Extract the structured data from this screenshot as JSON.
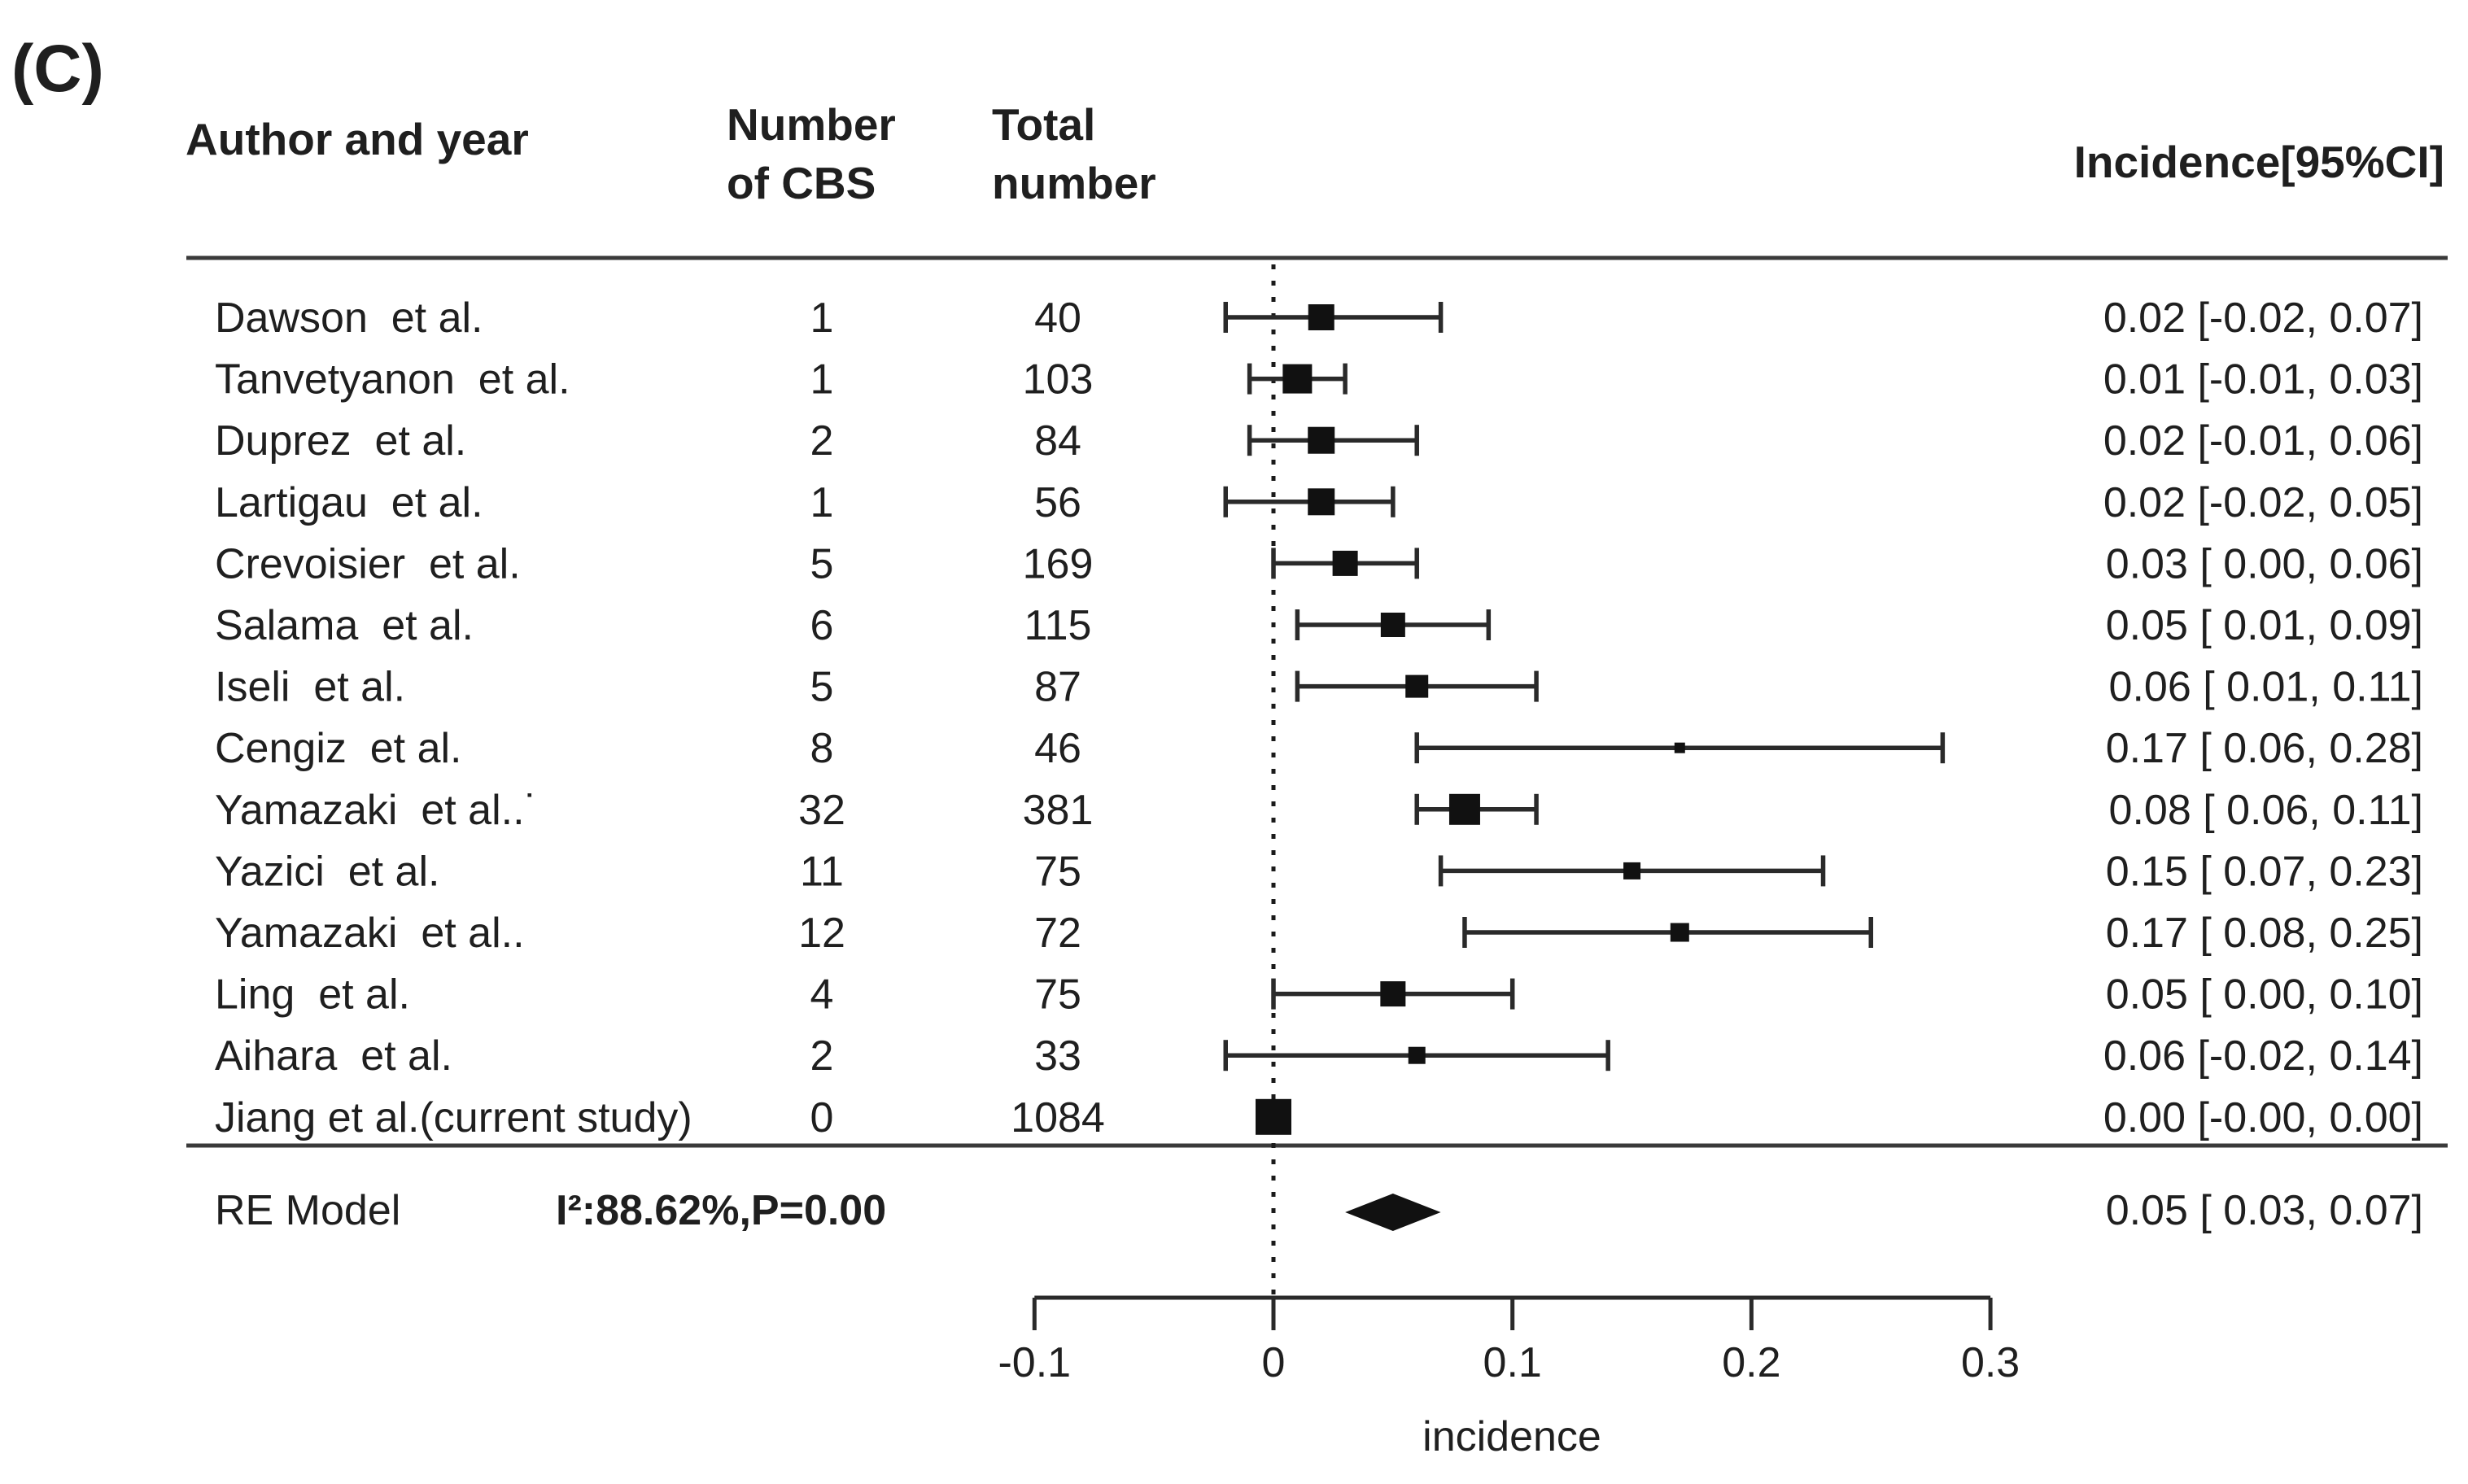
{
  "panel_label": "(C)",
  "header": {
    "author": "Author and year",
    "cbs_line1": "Number",
    "cbs_line2": "of CBS",
    "total_line1": "Total",
    "total_line2": "number",
    "incidence": "Incidence[95%CI]"
  },
  "chart_data": {
    "type": "forest",
    "xlabel": "incidence",
    "xlim": [
      -0.1,
      0.3
    ],
    "x_ticks": [
      -0.1,
      0,
      0.1,
      0.2,
      0.3
    ],
    "zero_line": 0,
    "legend_position": "none",
    "grid": false,
    "studies": [
      {
        "author": "Dawson  et al.",
        "n_cbs": "1",
        "total": "40",
        "est": 0.02,
        "lo": -0.02,
        "hi": 0.07,
        "ci": "0.02 [-0.02, 0.07]",
        "size": 32
      },
      {
        "author": "Tanvetyanon  et al.",
        "n_cbs": "1",
        "total": "103",
        "est": 0.01,
        "lo": -0.01,
        "hi": 0.03,
        "ci": "0.01 [-0.01, 0.03]",
        "size": 36
      },
      {
        "author": "Duprez  et al.",
        "n_cbs": "2",
        "total": "84",
        "est": 0.02,
        "lo": -0.01,
        "hi": 0.06,
        "ci": "0.02 [-0.01, 0.06]",
        "size": 33
      },
      {
        "author": "Lartigau  et al.",
        "n_cbs": "1",
        "total": "56",
        "est": 0.02,
        "lo": -0.02,
        "hi": 0.05,
        "ci": "0.02 [-0.02, 0.05]",
        "size": 33
      },
      {
        "author": "Crevoisier  et al.",
        "n_cbs": "5",
        "total": "169",
        "est": 0.03,
        "lo": 0.0,
        "hi": 0.06,
        "ci": "0.03 [ 0.00, 0.06]",
        "size": 31
      },
      {
        "author": "Salama  et al.",
        "n_cbs": "6",
        "total": "115",
        "est": 0.05,
        "lo": 0.01,
        "hi": 0.09,
        "ci": "0.05 [ 0.01, 0.09]",
        "size": 30
      },
      {
        "author": "Iseli  et al.",
        "n_cbs": "5",
        "total": "87",
        "est": 0.06,
        "lo": 0.01,
        "hi": 0.11,
        "ci": "0.06 [ 0.01, 0.11]",
        "size": 28
      },
      {
        "author": "Cengiz  et al.",
        "n_cbs": "8",
        "total": "46",
        "est": 0.17,
        "lo": 0.06,
        "hi": 0.28,
        "ci": "0.17 [ 0.06, 0.28]",
        "size": 13
      },
      {
        "author": "Yamazaki  et al..˙",
        "n_cbs": "32",
        "total": "381",
        "est": 0.08,
        "lo": 0.06,
        "hi": 0.11,
        "ci": "0.08 [ 0.06, 0.11]",
        "size": 38
      },
      {
        "author": "Yazici  et al.",
        "n_cbs": "11",
        "total": "75",
        "est": 0.15,
        "lo": 0.07,
        "hi": 0.23,
        "ci": "0.15 [ 0.07, 0.23]",
        "size": 21
      },
      {
        "author": "Yamazaki  et al..",
        "n_cbs": "12",
        "total": "72",
        "est": 0.17,
        "lo": 0.08,
        "hi": 0.25,
        "ci": "0.17 [ 0.08, 0.25]",
        "size": 23
      },
      {
        "author": "Ling  et al.",
        "n_cbs": "4",
        "total": "75",
        "est": 0.05,
        "lo": 0.0,
        "hi": 0.1,
        "ci": "0.05 [ 0.00, 0.10]",
        "size": 31
      },
      {
        "author": "Aihara  et al.",
        "n_cbs": "2",
        "total": "33",
        "est": 0.06,
        "lo": -0.02,
        "hi": 0.14,
        "ci": "0.06 [-0.02, 0.14]",
        "size": 21
      },
      {
        "author": "Jiang et al.(current study)",
        "n_cbs": "0",
        "total": "1084",
        "est": 0.0,
        "lo": 0.0,
        "hi": 0.0,
        "ci": "0.00 [-0.00, 0.00]",
        "size": 44
      }
    ],
    "summary": {
      "label": "RE Model",
      "heterogeneity": "I²:88.62%,P=0.00",
      "est": 0.05,
      "lo": 0.03,
      "hi": 0.07,
      "ci": "0.05 [ 0.03, 0.07]"
    },
    "colors": {
      "text": "#1f1f1f",
      "marker": "#111111",
      "line": "#2a2a2a"
    }
  }
}
